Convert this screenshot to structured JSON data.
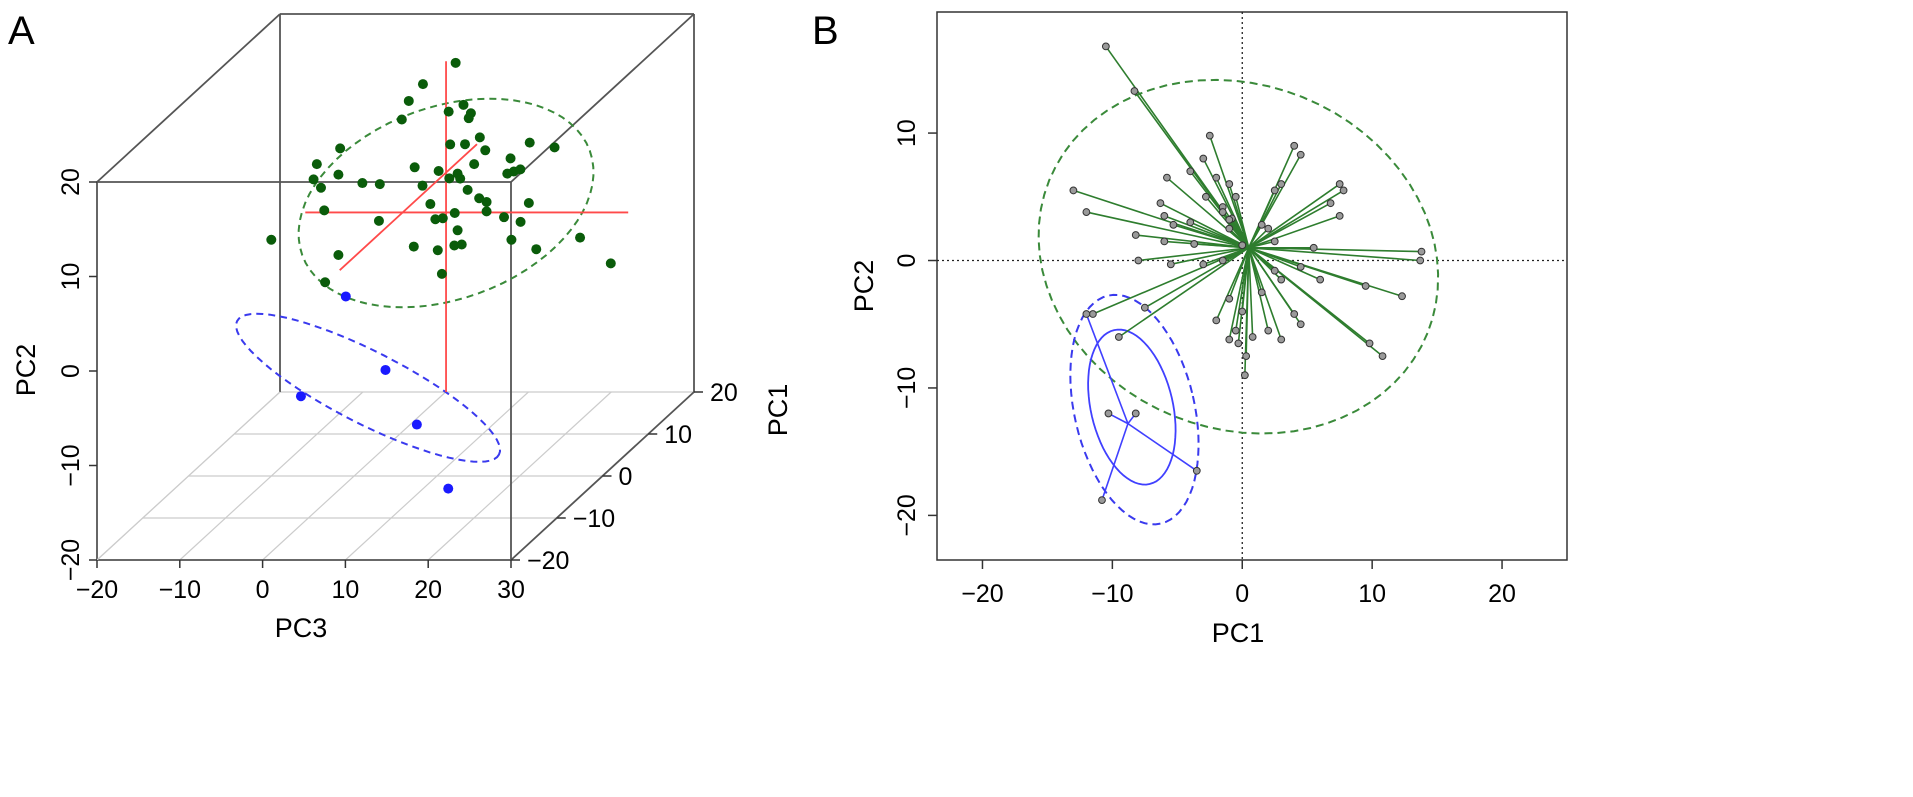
{
  "chart_data": [
    {
      "panel_label": "A",
      "type": "scatter",
      "projection": "3d",
      "xlabel": "PC3",
      "ylabel": "PC2",
      "zlabel": "PC1",
      "xticks": [
        "-20",
        "-10",
        "0",
        "10",
        "20",
        "30"
      ],
      "yticks": [
        "-20",
        "-10",
        "0",
        "10",
        "20"
      ],
      "zticks": [
        "-20",
        "-10",
        "0",
        "10",
        "20"
      ],
      "xlim": [
        -20,
        30
      ],
      "ylim": [
        -20,
        20
      ],
      "zlim": [
        -20,
        20
      ],
      "colors": {
        "group1": "#0a5c0a",
        "group2": "#1a1aff",
        "centroid_cross": "#ff4a4a",
        "ellipse1": "#3a8a3a",
        "ellipse2": "#3a3aee",
        "box": "#555555",
        "floor_grid": "#cccccc"
      },
      "series": [
        {
          "values": [
            [
              9.5,
              21.5,
              5
            ],
            [
              5.5,
              18.8,
              2
            ],
            [
              5.0,
              18.8,
              6
            ],
            [
              15.5,
              19.2,
              -3
            ],
            [
              18.5,
              18.5,
              -6
            ],
            [
              3.0,
              15.5,
              5
            ],
            [
              7.0,
              15.0,
              8
            ],
            [
              11.0,
              17.5,
              4
            ],
            [
              13.0,
              17.5,
              2
            ],
            [
              14.5,
              16.0,
              -2
            ],
            [
              17.5,
              15.8,
              -3
            ],
            [
              20.0,
              14.5,
              -2
            ],
            [
              21.5,
              14.0,
              -4
            ],
            [
              10.5,
              14.2,
              2
            ],
            [
              14.5,
              13.0,
              0
            ],
            [
              24.5,
              16.0,
              -8
            ],
            [
              19.0,
              13.5,
              4
            ],
            [
              22.0,
              13.0,
              4
            ],
            [
              18.5,
              12.0,
              0
            ],
            [
              12.5,
              12.0,
              0
            ],
            [
              -4.5,
              13.0,
              0
            ],
            [
              -5.0,
              12.0,
              6
            ],
            [
              -3.0,
              11.0,
              2
            ],
            [
              -4.0,
              10.5,
              0
            ],
            [
              -6.0,
              10.5,
              2
            ],
            [
              -2.5,
              9.0,
              -2
            ],
            [
              1.0,
              11.0,
              0
            ],
            [
              4.0,
              10.0,
              6
            ],
            [
              5.5,
              8.5,
              5
            ],
            [
              8.0,
              10.5,
              4
            ],
            [
              9.5,
              8.8,
              6
            ],
            [
              11.5,
              8.5,
              4
            ],
            [
              2.0,
              10.0,
              2
            ],
            [
              11.5,
              11.5,
              0
            ],
            [
              16.0,
              9.0,
              0
            ],
            [
              14.0,
              8.5,
              2
            ],
            [
              16.0,
              8.0,
              0
            ],
            [
              17.0,
              6.5,
              2
            ],
            [
              19.0,
              6.0,
              2
            ],
            [
              20.0,
              8.0,
              2
            ],
            [
              3.0,
              7.0,
              0
            ],
            [
              7.0,
              7.0,
              4
            ],
            [
              8.5,
              5.5,
              4
            ],
            [
              10.5,
              6.5,
              3
            ],
            [
              12.5,
              6.0,
              0
            ],
            [
              6.5,
              4.5,
              6
            ],
            [
              5.0,
              2.5,
              4
            ],
            [
              9.0,
              3.0,
              2
            ],
            [
              11.0,
              3.5,
              2
            ],
            [
              13.0,
              4.5,
              0
            ],
            [
              19.0,
              5.0,
              0
            ],
            [
              22.0,
              4.0,
              0
            ],
            [
              29.5,
              7.0,
              -4
            ],
            [
              31.0,
              2.5,
              0
            ],
            [
              -10.0,
              5.0,
              0
            ],
            [
              -3.5,
              0.5,
              0
            ],
            [
              -3.0,
              2.5,
              2
            ],
            [
              9.5,
              0.5,
              2
            ]
          ]
        },
        {
          "values": [
            [
              -1,
              -1,
              0
            ],
            [
              6,
              -7,
              -4
            ],
            [
              -2,
              -8,
              -8
            ],
            [
              12,
              -11,
              -8
            ],
            [
              18,
              -16,
              -12
            ]
          ]
        }
      ]
    },
    {
      "panel_label": "B",
      "type": "scatter",
      "xlabel": "PC1",
      "ylabel": "PC2",
      "xticks": [
        "-20",
        "-10",
        "0",
        "10",
        "20"
      ],
      "yticks": [
        "-20",
        "-10",
        "0",
        "10"
      ],
      "xlim": [
        -23.5,
        25
      ],
      "ylim": [
        -23.5,
        19.5
      ],
      "grid": false,
      "reference_lines": [
        0,
        0
      ],
      "colors": {
        "group1_line": "#2e7d2e",
        "group2_line": "#4040ff",
        "point_fill": "#9a9a9a",
        "ellipse1": "#3a8a3a",
        "ellipse2": "#3a3aee"
      },
      "series": [
        {
          "centroid": [
            0.5,
            1.0
          ],
          "values": [
            [
              -10.5,
              16.8
            ],
            [
              -8.3,
              13.3
            ],
            [
              -2.5,
              9.8
            ],
            [
              -5.8,
              6.5
            ],
            [
              -3.0,
              8.0
            ],
            [
              -4.0,
              7.0
            ],
            [
              -2.0,
              6.5
            ],
            [
              -1.0,
              6.0
            ],
            [
              -0.5,
              5.0
            ],
            [
              -2.8,
              5.0
            ],
            [
              -1.5,
              4.2
            ],
            [
              -13.0,
              5.5
            ],
            [
              -12.0,
              3.8
            ],
            [
              -6.3,
              4.5
            ],
            [
              -6.0,
              3.5
            ],
            [
              -8.2,
              2.0
            ],
            [
              -5.3,
              2.8
            ],
            [
              -4.0,
              3.0
            ],
            [
              -1.5,
              3.8
            ],
            [
              -0.8,
              3.3
            ],
            [
              -6.0,
              1.5
            ],
            [
              -3.7,
              1.3
            ],
            [
              -1.0,
              2.5
            ],
            [
              -8.0,
              0.0
            ],
            [
              -5.5,
              -0.3
            ],
            [
              -3.0,
              -0.3
            ],
            [
              -1.5,
              0.0
            ],
            [
              -7.5,
              -3.7
            ],
            [
              -9.5,
              -6.0
            ],
            [
              -11.5,
              -4.2
            ],
            [
              -2.0,
              -4.7
            ],
            [
              -1.0,
              -3.0
            ],
            [
              -0.5,
              -5.5
            ],
            [
              -1.0,
              -6.2
            ],
            [
              -0.3,
              -6.5
            ],
            [
              0.0,
              -4.0
            ],
            [
              0.3,
              -7.5
            ],
            [
              0.2,
              -9.0
            ],
            [
              0.8,
              -6.0
            ],
            [
              1.5,
              -2.5
            ],
            [
              2.0,
              -5.5
            ],
            [
              3.0,
              -6.2
            ],
            [
              4.0,
              -4.2
            ],
            [
              4.5,
              -5.0
            ],
            [
              3.0,
              -1.5
            ],
            [
              2.5,
              -0.8
            ],
            [
              4.5,
              -0.5
            ],
            [
              6.0,
              -1.5
            ],
            [
              9.5,
              -2.0
            ],
            [
              12.3,
              -2.8
            ],
            [
              10.8,
              -7.5
            ],
            [
              9.8,
              -6.5
            ],
            [
              5.5,
              1.0
            ],
            [
              13.8,
              0.7
            ],
            [
              13.7,
              0.0
            ],
            [
              7.5,
              3.5
            ],
            [
              7.5,
              6.0
            ],
            [
              7.8,
              5.5
            ],
            [
              6.8,
              4.5
            ],
            [
              4.0,
              9.0
            ],
            [
              4.5,
              8.3
            ],
            [
              3.0,
              6.0
            ],
            [
              2.5,
              5.5
            ],
            [
              1.5,
              2.8
            ],
            [
              2.0,
              2.5
            ],
            [
              2.5,
              1.5
            ],
            [
              -1.0,
              3.2
            ],
            [
              0.0,
              1.2
            ]
          ]
        },
        {
          "centroid": [
            -8.8,
            -12.8
          ],
          "values": [
            [
              -12.0,
              -4.2
            ],
            [
              -10.3,
              -12.0
            ],
            [
              -8.2,
              -12.0
            ],
            [
              -3.5,
              -16.5
            ],
            [
              -10.8,
              -18.8
            ]
          ]
        }
      ]
    }
  ]
}
